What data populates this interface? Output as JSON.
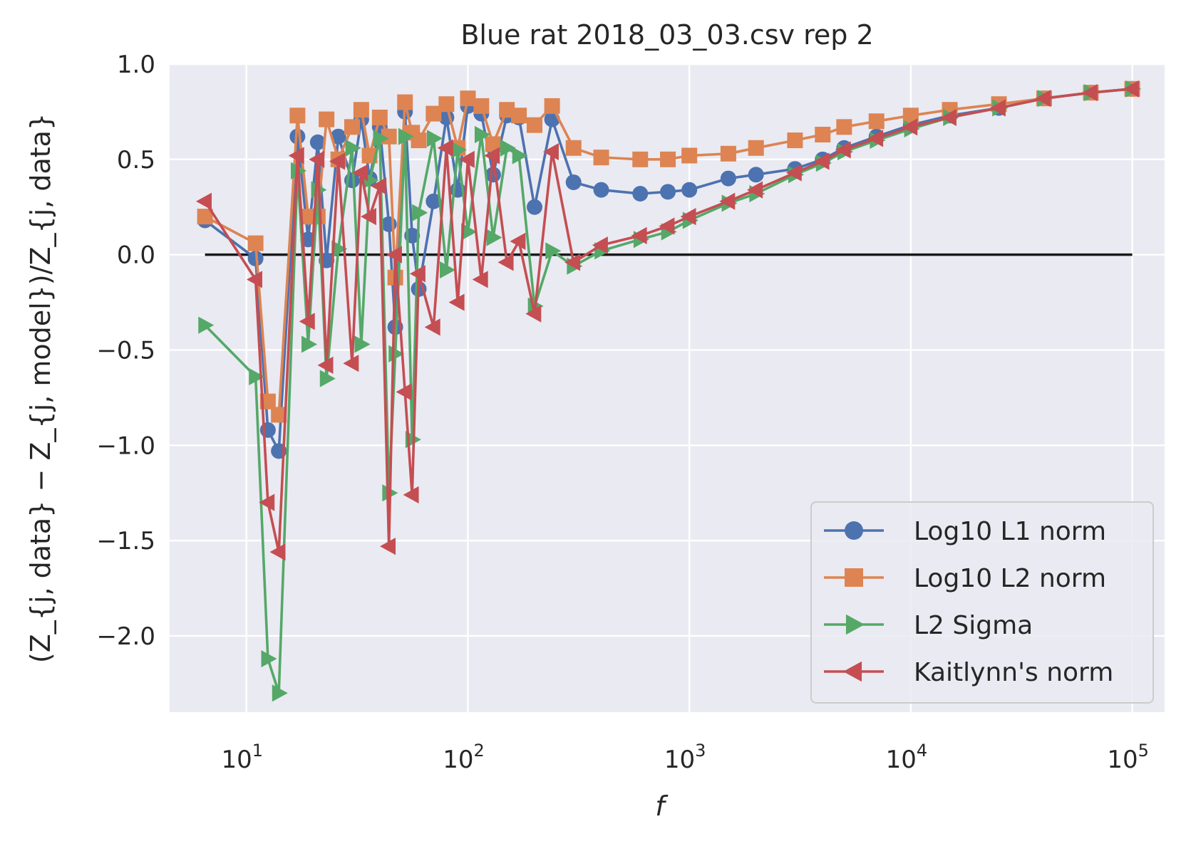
{
  "chart_data": {
    "type": "line",
    "title": "Blue rat 2018_03_03.csv rep 2",
    "xlabel": "f",
    "ylabel": "(Z_{j, data} − Z_{j, model})/Z_{j, data}",
    "xscale": "log",
    "xlim": [
      4.5,
      140000
    ],
    "ylim": [
      -2.4,
      1.0
    ],
    "grid": true,
    "legend_position": "lower right",
    "x_ticks": [
      {
        "value": 10,
        "base": "10",
        "exp": "1"
      },
      {
        "value": 100,
        "base": "10",
        "exp": "2"
      },
      {
        "value": 1000,
        "base": "10",
        "exp": "3"
      },
      {
        "value": 10000,
        "base": "10",
        "exp": "4"
      },
      {
        "value": 100000,
        "base": "10",
        "exp": "5"
      }
    ],
    "y_ticks": [
      {
        "value": 1.0,
        "label": "1.0"
      },
      {
        "value": 0.5,
        "label": "0.5"
      },
      {
        "value": 0.0,
        "label": "0.0"
      },
      {
        "value": -0.5,
        "label": "−0.5"
      },
      {
        "value": -1.0,
        "label": "−1.0"
      },
      {
        "value": -1.5,
        "label": "−1.5"
      },
      {
        "value": -2.0,
        "label": "−2.0"
      }
    ],
    "reference_line": {
      "y": 0,
      "x_from": 6.5,
      "x_to": 100000,
      "color": "#1a1a1a"
    },
    "series": [
      {
        "name": "Log10 L1 norm",
        "color": "#4C72B0",
        "marker": "circle",
        "x": [
          6.5,
          11,
          12.5,
          14,
          17,
          19,
          21,
          23,
          26,
          30,
          33,
          36,
          40,
          44,
          47,
          52,
          56,
          60,
          70,
          80,
          90,
          100,
          115,
          130,
          150,
          170,
          200,
          240,
          300,
          400,
          600,
          800,
          1000,
          1500,
          2000,
          3000,
          4000,
          5000,
          7000,
          10000,
          15000,
          25000,
          40000,
          65000,
          100000
        ],
        "y": [
          0.18,
          -0.02,
          -0.92,
          -1.03,
          0.62,
          0.08,
          0.59,
          -0.03,
          0.62,
          0.39,
          0.71,
          0.4,
          0.67,
          0.16,
          -0.38,
          0.75,
          0.1,
          -0.18,
          0.28,
          0.72,
          0.34,
          0.78,
          0.74,
          0.42,
          0.73,
          0.72,
          0.25,
          0.71,
          0.38,
          0.34,
          0.32,
          0.33,
          0.34,
          0.4,
          0.42,
          0.45,
          0.5,
          0.56,
          0.62,
          0.68,
          0.73,
          0.77,
          0.82,
          0.85,
          0.87
        ]
      },
      {
        "name": "Log10 L2 norm",
        "color": "#DD8452",
        "marker": "square",
        "x": [
          6.5,
          11,
          12.5,
          14,
          17,
          19,
          21,
          23,
          26,
          30,
          33,
          36,
          40,
          44,
          47,
          52,
          56,
          60,
          70,
          80,
          90,
          100,
          115,
          130,
          150,
          170,
          200,
          240,
          300,
          400,
          600,
          800,
          1000,
          1500,
          2000,
          3000,
          4000,
          5000,
          7000,
          10000,
          15000,
          25000,
          40000,
          65000,
          100000
        ],
        "y": [
          0.2,
          0.06,
          -0.77,
          -0.84,
          0.73,
          0.2,
          0.2,
          0.71,
          0.5,
          0.67,
          0.76,
          0.52,
          0.72,
          0.62,
          -0.12,
          0.8,
          0.64,
          0.6,
          0.74,
          0.79,
          0.56,
          0.82,
          0.78,
          0.58,
          0.76,
          0.73,
          0.68,
          0.78,
          0.56,
          0.51,
          0.5,
          0.5,
          0.52,
          0.53,
          0.56,
          0.6,
          0.63,
          0.67,
          0.7,
          0.73,
          0.76,
          0.79,
          0.82,
          0.85,
          0.87
        ]
      },
      {
        "name": "L2 Sigma",
        "color": "#55A868",
        "marker": "triangle-right",
        "x": [
          6.5,
          11,
          12.5,
          14,
          17,
          19,
          21,
          23,
          26,
          30,
          33,
          36,
          40,
          44,
          47,
          52,
          56,
          60,
          70,
          80,
          90,
          100,
          115,
          130,
          150,
          170,
          200,
          240,
          300,
          400,
          600,
          800,
          1000,
          1500,
          2000,
          3000,
          4000,
          5000,
          7000,
          10000,
          15000,
          25000,
          40000,
          65000,
          100000
        ],
        "y": [
          -0.37,
          -0.64,
          -2.12,
          -2.3,
          0.44,
          -0.47,
          0.34,
          -0.65,
          0.03,
          0.56,
          -0.47,
          0.39,
          0.61,
          -1.25,
          -0.52,
          0.62,
          -0.97,
          0.22,
          0.61,
          -0.08,
          0.55,
          0.12,
          0.63,
          0.09,
          0.56,
          0.52,
          -0.27,
          0.02,
          -0.06,
          0.02,
          0.08,
          0.12,
          0.18,
          0.27,
          0.32,
          0.42,
          0.48,
          0.54,
          0.6,
          0.66,
          0.72,
          0.77,
          0.82,
          0.85,
          0.87
        ]
      },
      {
        "name": "Kaitlynn's norm",
        "color": "#C44E52",
        "marker": "triangle-left",
        "x": [
          6.5,
          11,
          12.5,
          14,
          17,
          19,
          21,
          23,
          26,
          30,
          33,
          36,
          40,
          44,
          47,
          52,
          56,
          60,
          70,
          80,
          90,
          100,
          115,
          130,
          150,
          170,
          200,
          240,
          300,
          400,
          600,
          800,
          1000,
          1500,
          2000,
          3000,
          4000,
          5000,
          7000,
          10000,
          15000,
          25000,
          40000,
          65000,
          100000
        ],
        "y": [
          0.28,
          -0.13,
          -1.3,
          -1.56,
          0.52,
          -0.35,
          0.5,
          -0.58,
          0.49,
          -0.57,
          0.43,
          0.2,
          0.36,
          -1.53,
          0.0,
          -0.72,
          -1.26,
          -0.1,
          -0.38,
          0.56,
          -0.25,
          0.5,
          -0.13,
          0.52,
          -0.04,
          0.07,
          -0.31,
          0.54,
          -0.04,
          0.05,
          0.1,
          0.15,
          0.2,
          0.28,
          0.34,
          0.43,
          0.49,
          0.55,
          0.61,
          0.67,
          0.72,
          0.77,
          0.82,
          0.85,
          0.87
        ]
      }
    ]
  }
}
